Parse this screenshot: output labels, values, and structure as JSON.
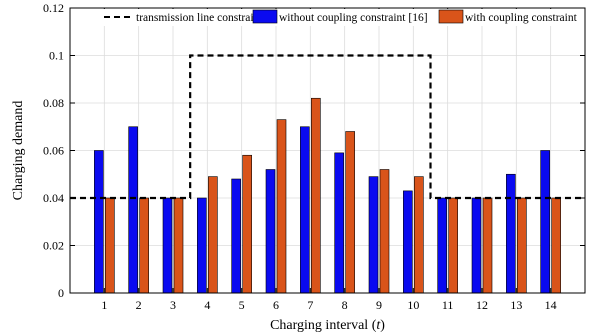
{
  "chart_data": {
    "type": "bar",
    "title": "",
    "xlabel": "Charging interval (",
    "xlabel_var": "t",
    "xlabel_close": ")",
    "ylabel": "Charging demand",
    "ylim": [
      0,
      0.12
    ],
    "yticks": [
      0,
      0.02,
      0.04,
      0.06,
      0.08,
      0.1,
      0.12
    ],
    "ytick_labels": [
      "0",
      "0.02",
      "0.04",
      "0.06",
      "0.08",
      "0.1",
      "0.12"
    ],
    "grid": true,
    "legend_position": "top",
    "categories": [
      "1",
      "2",
      "3",
      "4",
      "5",
      "6",
      "7",
      "8",
      "9",
      "10",
      "11",
      "12",
      "13",
      "14"
    ],
    "series": [
      {
        "name": "without coupling constraint [16]",
        "color": "#0a0af0",
        "values": [
          0.06,
          0.07,
          0.04,
          0.04,
          0.048,
          0.052,
          0.07,
          0.059,
          0.049,
          0.043,
          0.04,
          0.04,
          0.05,
          0.06
        ]
      },
      {
        "name": "with coupling constraint",
        "color": "#d9541a",
        "values": [
          0.04,
          0.04,
          0.04,
          0.049,
          0.058,
          0.073,
          0.082,
          0.068,
          0.052,
          0.049,
          0.04,
          0.04,
          0.04,
          0.04
        ]
      }
    ],
    "constraint": {
      "name": "transmission line constraint",
      "style": "dashed",
      "color": "#000000",
      "values": [
        0.04,
        0.04,
        0.04,
        0.1,
        0.1,
        0.1,
        0.1,
        0.1,
        0.1,
        0.1,
        0.04,
        0.04,
        0.04,
        0.04
      ]
    }
  }
}
